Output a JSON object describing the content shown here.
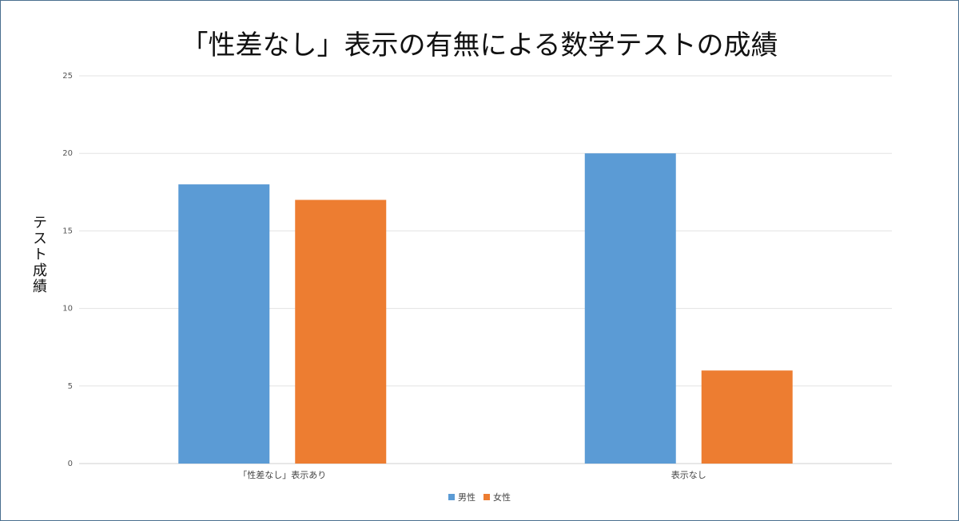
{
  "chart_data": {
    "type": "bar",
    "title": "「性差なし」表示の有無による数学テストの成績",
    "ylabel": "テスト成績",
    "xlabel": "",
    "categories": [
      "「性差なし」表示あり",
      "表示なし"
    ],
    "series": [
      {
        "name": "男性",
        "values": [
          18,
          20
        ],
        "color": "#5b9bd5"
      },
      {
        "name": "女性",
        "values": [
          17,
          6
        ],
        "color": "#ed7d31"
      }
    ],
    "ylim": [
      0,
      25
    ],
    "yticks": [
      0,
      5,
      10,
      15,
      20,
      25
    ],
    "grid": true,
    "legend_position": "bottom"
  }
}
